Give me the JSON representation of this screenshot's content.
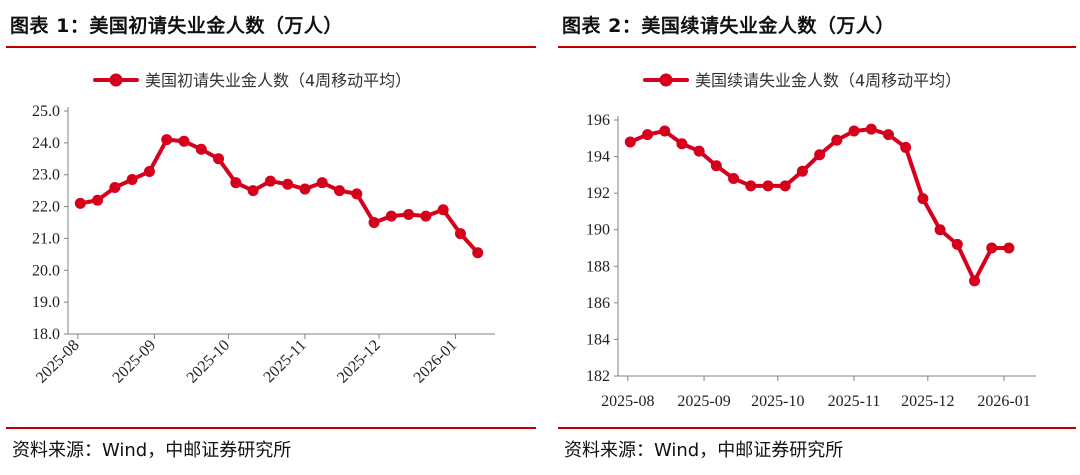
{
  "charts": {
    "left": {
      "header": "图表 1：美国初请失业金人数（万人）",
      "source": "资料来源：Wind，中邮证券研究所"
    },
    "right": {
      "header": "图表 2：美国续请失业金人数（万人）",
      "source": "资料来源：Wind，中邮证券研究所"
    }
  },
  "colors": {
    "series": "#d6001c",
    "axis": "#808080",
    "header_rule": "#c00000"
  },
  "chart_data": [
    {
      "type": "line",
      "title": "美国初请失业金人数（万人）",
      "series": [
        {
          "name": "美国初请失业金人数（4周移动平均）",
          "x": [
            "2025-08-02",
            "2025-08-09",
            "2025-08-16",
            "2025-08-23",
            "2025-08-30",
            "2025-09-06",
            "2025-09-13",
            "2025-09-20",
            "2025-09-27",
            "2025-10-04",
            "2025-10-11",
            "2025-10-18",
            "2025-10-25",
            "2025-11-01",
            "2025-11-08",
            "2025-11-15",
            "2025-11-22",
            "2025-11-29",
            "2025-12-06",
            "2025-12-13",
            "2025-12-20",
            "2025-12-27",
            "2026-01-03",
            "2026-01-10"
          ],
          "values": [
            22.1,
            22.2,
            22.6,
            22.85,
            23.1,
            24.1,
            24.05,
            23.8,
            23.5,
            22.75,
            22.5,
            22.8,
            22.7,
            22.55,
            22.75,
            22.5,
            22.4,
            21.5,
            21.7,
            21.75,
            21.7,
            21.9,
            21.15,
            20.55
          ]
        }
      ],
      "x_ticks": [
        "2025-08",
        "2025-09",
        "2025-10",
        "2025-11",
        "2025-12",
        "2026-01"
      ],
      "ylim": [
        18.0,
        25.0
      ],
      "y_ticks": [
        "18.0",
        "19.0",
        "20.0",
        "21.0",
        "22.0",
        "23.0",
        "24.0",
        "25.0"
      ],
      "legend": "top",
      "grid": false
    },
    {
      "type": "line",
      "title": "美国续请失业金人数（万人）",
      "series": [
        {
          "name": "美国续请失业金人数（4周移动平均）",
          "x": [
            "2025-08-02",
            "2025-08-09",
            "2025-08-16",
            "2025-08-23",
            "2025-08-30",
            "2025-09-06",
            "2025-09-13",
            "2025-09-20",
            "2025-09-27",
            "2025-10-04",
            "2025-10-11",
            "2025-10-18",
            "2025-10-25",
            "2025-11-01",
            "2025-11-08",
            "2025-11-15",
            "2025-11-22",
            "2025-11-29",
            "2025-12-06",
            "2025-12-13",
            "2025-12-20",
            "2025-12-27",
            "2026-01-03"
          ],
          "values": [
            194.8,
            195.2,
            195.4,
            194.7,
            194.3,
            193.5,
            192.8,
            192.4,
            192.4,
            192.4,
            193.2,
            194.1,
            194.9,
            195.4,
            195.5,
            195.2,
            194.5,
            191.7,
            190.0,
            189.2,
            187.2,
            189.0,
            189.0
          ]
        }
      ],
      "x_ticks": [
        "2025-08",
        "2025-09",
        "2025-10",
        "2025-11",
        "2025-12",
        "2026-01"
      ],
      "ylim": [
        182,
        196
      ],
      "y_ticks": [
        "182",
        "184",
        "186",
        "188",
        "190",
        "192",
        "194",
        "196"
      ],
      "legend": "top",
      "grid": false
    }
  ]
}
